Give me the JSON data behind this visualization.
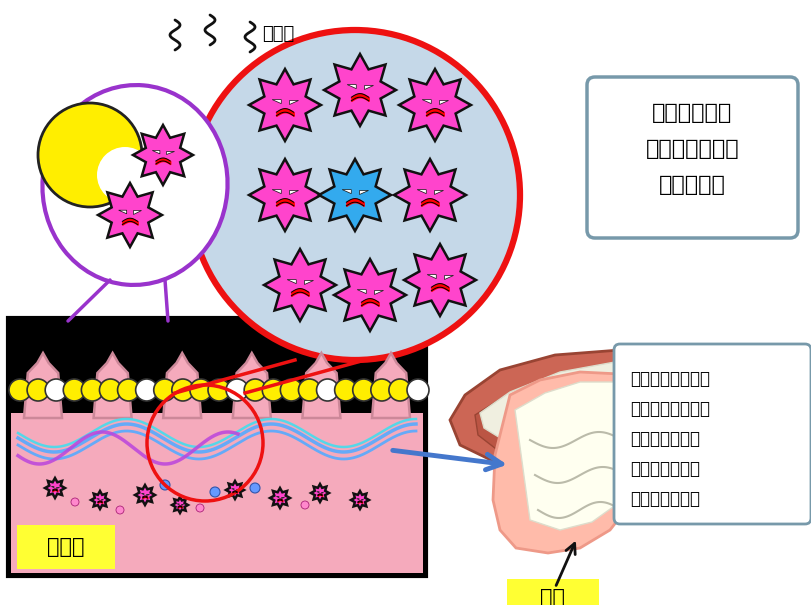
{
  "bg_color": "#ffffff",
  "fukaishuu_text": "不快臭",
  "bacteria_circle_text1": "細菌はバイオ",
  "bacteria_circle_text2": "フィルムを形成",
  "bacteria_circle_text3": "して増殖！",
  "tongue_coating_text1": "舌苘は食べカス、",
  "tongue_coating_text2": "細菌、バイオフィ",
  "tongue_coating_text3": "ルムで形成され",
  "tongue_coating_text4": "た白色や黄色の",
  "tongue_coating_text5": "苘のような汚れ",
  "label_shita_hyomen": "舌表面",
  "label_shitakoke": "舌苘",
  "pink_bacteria_color": "#FF44CC",
  "blue_bacteria_color": "#33AAEE",
  "purple_circle_color": "#9933CC",
  "red_circle_color": "#EE1111",
  "bacteria_circle_bg": "#C5D8E8",
  "yellow_ball_color": "#FFEE00",
  "tongue_surface_bg": "#F5AABC",
  "tongue_label_bg": "#FFFF33",
  "annotation_box_border": "#7799AA",
  "white_ball_color": "#FFFFFF",
  "blue_wave_color": "#55AAFF",
  "purple_wave_color": "#BB44DD",
  "cyan_wave_color": "#44DDEE",
  "pink_dot_color": "#FF88CC",
  "blue_dot_color": "#6699FF"
}
